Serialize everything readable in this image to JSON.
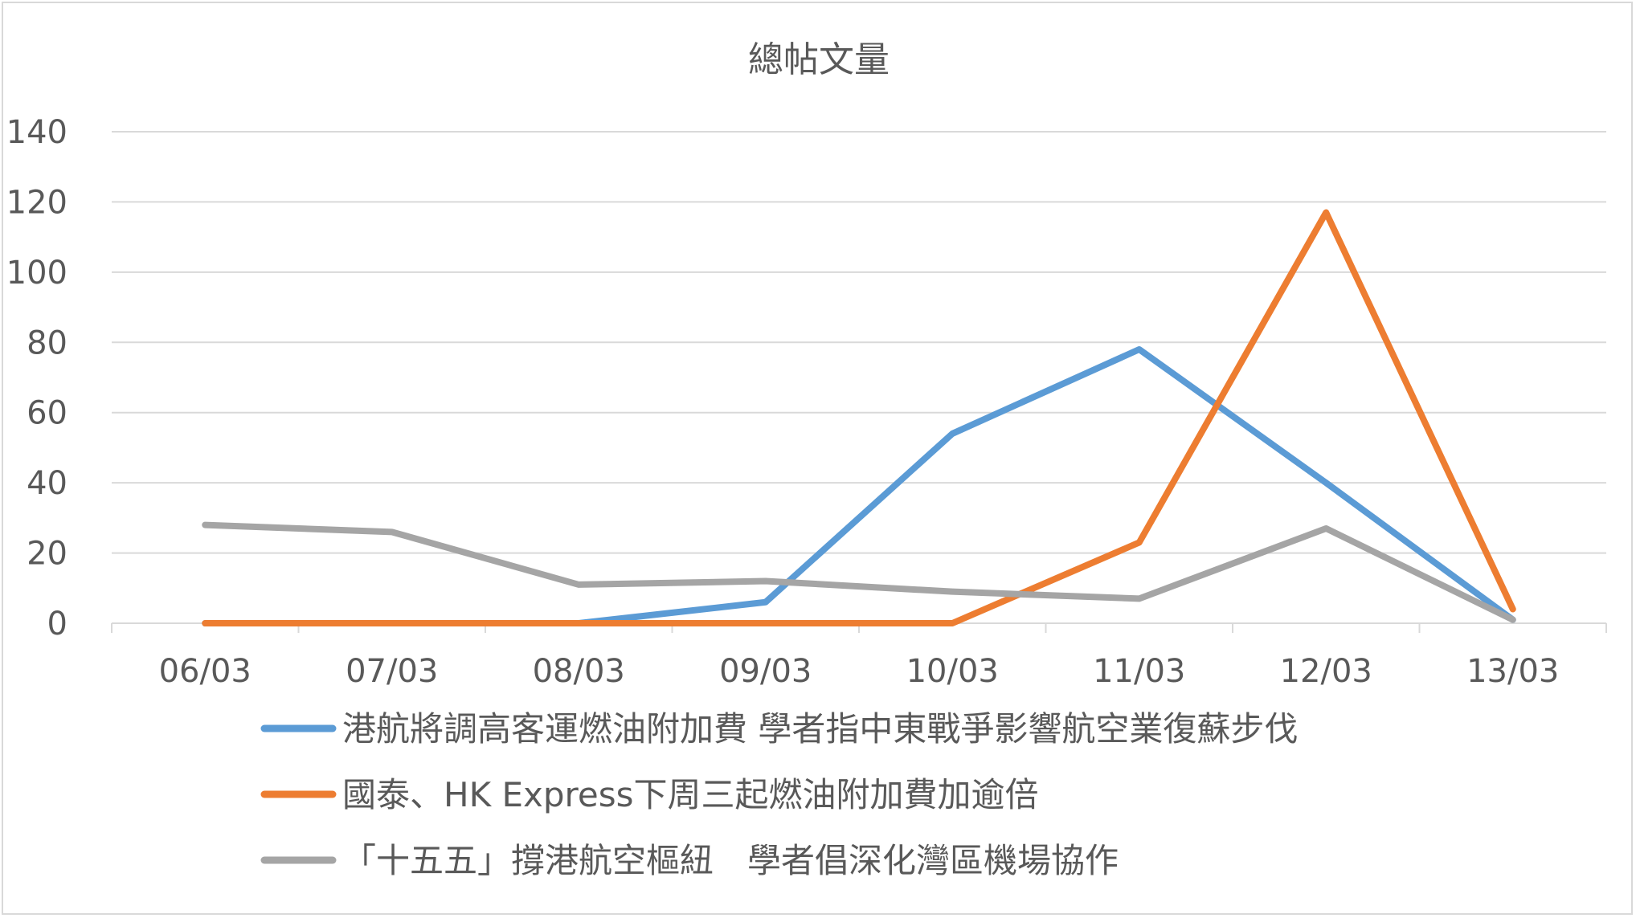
{
  "chart_data": {
    "type": "line",
    "title": "總帖文量",
    "xlabel": "",
    "ylabel": "",
    "categories": [
      "06/03",
      "07/03",
      "08/03",
      "09/03",
      "10/03",
      "11/03",
      "12/03",
      "13/03"
    ],
    "yticks": [
      0,
      20,
      40,
      60,
      80,
      100,
      120,
      140
    ],
    "ylim": [
      0,
      140
    ],
    "grid": true,
    "legend_position": "bottom",
    "series": [
      {
        "name": "港航將調高客運燃油附加費 學者指中東戰爭影響航空業復蘇步伐",
        "color": "#5b9bd5",
        "values": [
          0,
          0,
          0,
          6,
          54,
          78,
          40,
          1
        ]
      },
      {
        "name": "國泰、HK Express下周三起燃油附加費加逾倍",
        "color": "#ed7d31",
        "values": [
          0,
          0,
          0,
          0,
          0,
          23,
          117,
          4
        ]
      },
      {
        "name": "「十五五」撐港航空樞紐　學者倡深化灣區機場協作",
        "color": "#a5a5a5",
        "values": [
          28,
          26,
          11,
          12,
          9,
          7,
          27,
          1
        ]
      }
    ]
  }
}
